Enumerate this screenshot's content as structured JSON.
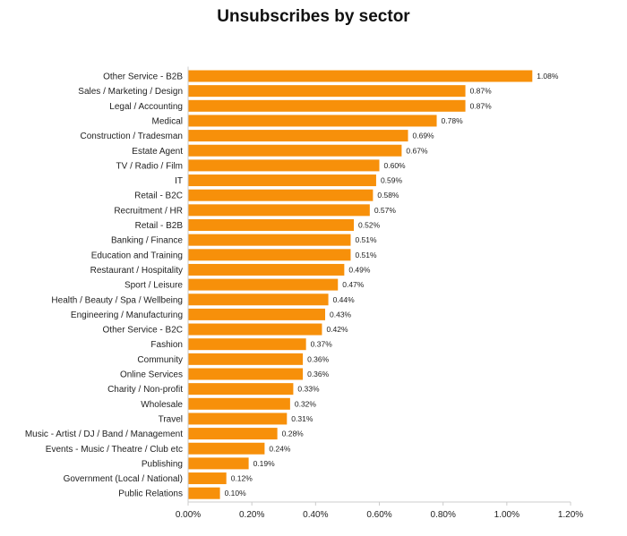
{
  "chart_data": {
    "type": "bar",
    "orientation": "horizontal",
    "title": "Unsubscribes by sector",
    "xlabel": "",
    "ylabel": "",
    "xlim": [
      0,
      1.2
    ],
    "x_ticks": [
      0,
      0.2,
      0.4,
      0.6,
      0.8,
      1.0,
      1.2
    ],
    "x_tick_labels": [
      "0.00%",
      "0.20%",
      "0.40%",
      "0.60%",
      "0.80%",
      "1.00%",
      "1.20%"
    ],
    "grid": false,
    "legend": "none",
    "bar_color": "#F7900A",
    "categories": [
      "Other Service - B2B",
      "Sales / Marketing / Design",
      "Legal / Accounting",
      "Medical",
      "Construction / Tradesman",
      "Estate Agent",
      "TV / Radio / Film",
      "IT",
      "Retail - B2C",
      "Recruitment / HR",
      "Retail - B2B",
      "Banking / Finance",
      "Education and Training",
      "Restaurant / Hospitality",
      "Sport / Leisure",
      "Health / Beauty / Spa / Wellbeing",
      "Engineering / Manufacturing",
      "Other Service - B2C",
      "Fashion",
      "Community",
      "Online Services",
      "Charity / Non-profit",
      "Wholesale",
      "Travel",
      "Music - Artist / DJ / Band / Management",
      "Events - Music / Theatre / Club etc",
      "Publishing",
      "Government (Local / National)",
      "Public Relations"
    ],
    "values": [
      1.08,
      0.87,
      0.87,
      0.78,
      0.69,
      0.67,
      0.6,
      0.59,
      0.58,
      0.57,
      0.52,
      0.51,
      0.51,
      0.49,
      0.47,
      0.44,
      0.43,
      0.42,
      0.37,
      0.36,
      0.36,
      0.33,
      0.32,
      0.31,
      0.28,
      0.24,
      0.19,
      0.12,
      0.1
    ],
    "value_labels": [
      "1.08%",
      "0.87%",
      "0.87%",
      "0.78%",
      "0.69%",
      "0.67%",
      "0.60%",
      "0.59%",
      "0.58%",
      "0.57%",
      "0.52%",
      "0.51%",
      "0.51%",
      "0.49%",
      "0.47%",
      "0.44%",
      "0.43%",
      "0.42%",
      "0.37%",
      "0.36%",
      "0.36%",
      "0.33%",
      "0.32%",
      "0.31%",
      "0.28%",
      "0.24%",
      "0.19%",
      "0.12%",
      "0.10%"
    ]
  }
}
